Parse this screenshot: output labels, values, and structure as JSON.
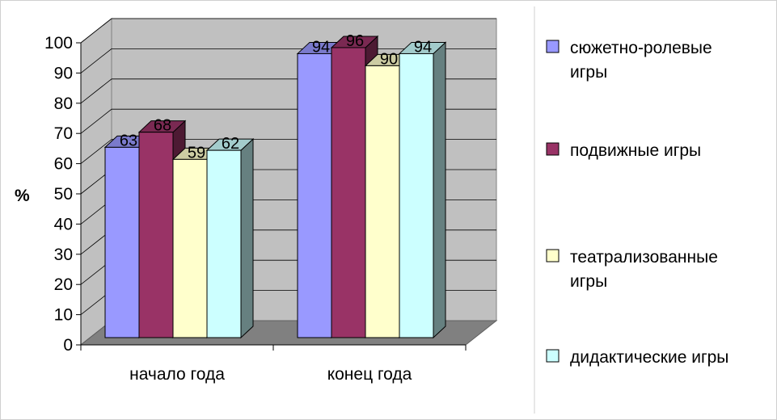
{
  "chart_data": {
    "type": "bar",
    "title": "",
    "xlabel": "",
    "ylabel": "%",
    "ylim": [
      0,
      100
    ],
    "yticks": [
      0,
      10,
      20,
      30,
      40,
      50,
      60,
      70,
      80,
      90,
      100
    ],
    "categories": [
      "начало года",
      "конец года"
    ],
    "grid": true,
    "legend_position": "right",
    "series": [
      {
        "name": "сюжетно-ролевые игры",
        "legend_lines": [
          "сюжетно-ролевые",
          "игры"
        ],
        "values": [
          63,
          94
        ],
        "color": "#9999ff"
      },
      {
        "name": "подвижные игры",
        "legend_lines": [
          "подвижные игры"
        ],
        "values": [
          68,
          96
        ],
        "color": "#993366"
      },
      {
        "name": "театрализованные игры",
        "legend_lines": [
          "театрализованные",
          "игры"
        ],
        "values": [
          59,
          90
        ],
        "color": "#ffffcc"
      },
      {
        "name": "дидактические игры",
        "legend_lines": [
          "дидактические игры"
        ],
        "values": [
          62,
          94
        ],
        "color": "#ccffff"
      }
    ],
    "wall_color": "#c0c0c0",
    "floor_color": "#808080"
  }
}
